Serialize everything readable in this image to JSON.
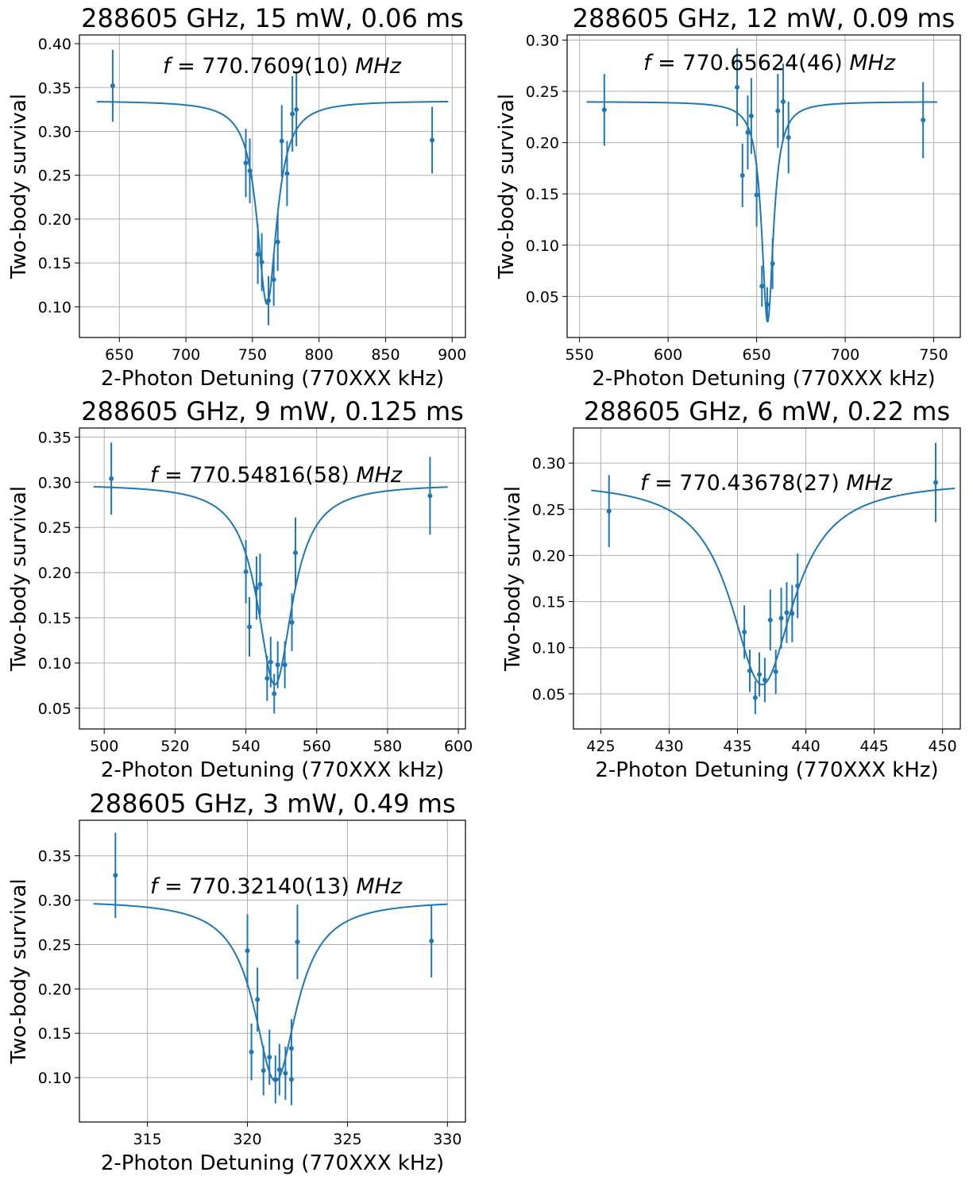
{
  "colors": {
    "series": "#1f77b4",
    "grid": "#b0b0b0"
  },
  "chart_data": [
    {
      "type": "scatter",
      "title": "288605 GHz, 15 mW, 0.06 ms",
      "xlabel": "2-Photon Detuning (770XXX kHz)",
      "ylabel": "Two-body survival",
      "annotation": "f = 770.7609(10) MHz",
      "annotation_parts": {
        "f": "f",
        "eq": " = 770.7609(10) ",
        "unit": "MHz"
      },
      "xlim": [
        620,
        910
      ],
      "ylim": [
        0.065,
        0.41
      ],
      "xticks": [
        650,
        700,
        750,
        800,
        850,
        900
      ],
      "yticks": [
        0.1,
        0.15,
        0.2,
        0.25,
        0.3,
        0.35,
        0.4
      ],
      "ytick_decimals": 2,
      "grid": true,
      "series": [
        {
          "x": [
            645,
            745,
            748,
            754,
            757,
            762,
            766,
            769,
            772,
            776,
            780,
            783,
            885
          ],
          "y": [
            0.352,
            0.264,
            0.255,
            0.16,
            0.151,
            0.107,
            0.131,
            0.174,
            0.289,
            0.252,
            0.32,
            0.325,
            0.29
          ],
          "yerr": [
            0.041,
            0.039,
            0.037,
            0.034,
            0.033,
            0.028,
            0.03,
            0.033,
            0.041,
            0.037,
            0.043,
            0.042,
            0.038
          ]
        }
      ],
      "fit": {
        "x_range": [
          633,
          897
        ],
        "baseline": 0.335,
        "depth": 0.232,
        "center": 760.9,
        "hwhm": 9.0
      }
    },
    {
      "type": "scatter",
      "title": "288605 GHz, 12 mW, 0.09 ms",
      "xlabel": "2-Photon Detuning (770XXX kHz)",
      "ylabel": "Two-body survival",
      "annotation": "f = 770.65624(46) MHz",
      "annotation_parts": {
        "f": "f",
        "eq": " = 770.65624(46) ",
        "unit": "MHz"
      },
      "xlim": [
        543,
        765
      ],
      "ylim": [
        0.01,
        0.305
      ],
      "xticks": [
        550,
        600,
        650,
        700,
        750
      ],
      "yticks": [
        0.05,
        0.1,
        0.15,
        0.2,
        0.25,
        0.3
      ],
      "ytick_decimals": 2,
      "grid": true,
      "series": [
        {
          "x": [
            564,
            639,
            642,
            645,
            647,
            650,
            653,
            656,
            659,
            662,
            665,
            668,
            744
          ],
          "y": [
            0.232,
            0.254,
            0.168,
            0.21,
            0.226,
            0.149,
            0.06,
            0.042,
            0.082,
            0.231,
            0.24,
            0.205,
            0.222
          ],
          "yerr": [
            0.035,
            0.038,
            0.031,
            0.036,
            0.037,
            0.031,
            0.02,
            0.017,
            0.025,
            0.036,
            0.037,
            0.035,
            0.037
          ]
        }
      ],
      "fit": {
        "x_range": [
          554,
          752
        ],
        "baseline": 0.24,
        "depth": 0.215,
        "center": 656.2,
        "hwhm": 4.0
      }
    },
    {
      "type": "scatter",
      "title": "288605 GHz, 9 mW, 0.125 ms",
      "xlabel": "2-Photon Detuning (770XXX kHz)",
      "ylabel": "Two-body survival",
      "annotation": "f = 770.54816(58) MHz",
      "annotation_parts": {
        "f": "f",
        "eq": " = 770.54816(58) ",
        "unit": "MHz"
      },
      "xlim": [
        493,
        602
      ],
      "ylim": [
        0.027,
        0.36
      ],
      "xticks": [
        500,
        520,
        540,
        560,
        580,
        600
      ],
      "yticks": [
        0.05,
        0.1,
        0.15,
        0.2,
        0.25,
        0.3,
        0.35
      ],
      "ytick_decimals": 2,
      "grid": true,
      "series": [
        {
          "x": [
            502,
            540,
            541,
            543,
            544,
            546,
            547,
            548,
            549,
            551,
            553,
            554,
            592
          ],
          "y": [
            0.304,
            0.201,
            0.14,
            0.183,
            0.187,
            0.083,
            0.101,
            0.066,
            0.098,
            0.098,
            0.145,
            0.222,
            0.285
          ],
          "yerr": [
            0.04,
            0.035,
            0.033,
            0.035,
            0.034,
            0.025,
            0.028,
            0.022,
            0.026,
            0.026,
            0.032,
            0.039,
            0.043
          ]
        }
      ],
      "fit": {
        "x_range": [
          497,
          597
        ],
        "baseline": 0.298,
        "depth": 0.222,
        "center": 548.2,
        "hwhm": 6.0
      }
    },
    {
      "type": "scatter",
      "title": "288605 GHz, 6 mW, 0.22 ms",
      "xlabel": "2-Photon Detuning (770XXX kHz)",
      "ylabel": "Two-body survival",
      "annotation": "f = 770.43678(27) MHz",
      "annotation_parts": {
        "f": "f",
        "eq": " = 770.43678(27) ",
        "unit": "MHz"
      },
      "xlim": [
        423,
        451.3
      ],
      "ylim": [
        0.012,
        0.338
      ],
      "xticks": [
        425,
        430,
        435,
        440,
        445,
        450
      ],
      "yticks": [
        0.05,
        0.1,
        0.15,
        0.2,
        0.25,
        0.3
      ],
      "ytick_decimals": 2,
      "grid": true,
      "series": [
        {
          "x": [
            425.6,
            435.5,
            435.9,
            436.3,
            436.6,
            437.0,
            437.4,
            437.8,
            438.2,
            438.6,
            439.0,
            439.4,
            449.5
          ],
          "y": [
            0.248,
            0.117,
            0.075,
            0.046,
            0.071,
            0.065,
            0.13,
            0.074,
            0.132,
            0.138,
            0.137,
            0.167,
            0.279
          ],
          "yerr": [
            0.039,
            0.029,
            0.023,
            0.018,
            0.024,
            0.024,
            0.033,
            0.024,
            0.033,
            0.033,
            0.031,
            0.035,
            0.043
          ]
        }
      ],
      "fit": {
        "x_range": [
          424.3,
          450.9
        ],
        "baseline": 0.281,
        "depth": 0.221,
        "center": 436.8,
        "hwhm": 2.8
      }
    },
    {
      "type": "scatter",
      "title": "288605 GHz, 3 mW, 0.49 ms",
      "xlabel": "2-Photon Detuning (770XXX kHz)",
      "ylabel": "Two-body survival",
      "annotation": "f = 770.32140(13) MHz",
      "annotation_parts": {
        "f": "f",
        "eq": " = 770.32140(13) ",
        "unit": "MHz"
      },
      "xlim": [
        311.6,
        330.9
      ],
      "ylim": [
        0.05,
        0.39
      ],
      "xticks": [
        315,
        320,
        325,
        330
      ],
      "yticks": [
        0.1,
        0.15,
        0.2,
        0.25,
        0.3,
        0.35
      ],
      "ytick_decimals": 2,
      "grid": true,
      "series": [
        {
          "x": [
            313.4,
            320.0,
            320.2,
            320.5,
            320.8,
            321.1,
            321.4,
            321.6,
            321.9,
            322.2,
            322.5,
            322.2,
            329.2
          ],
          "y": [
            0.328,
            0.243,
            0.129,
            0.188,
            0.108,
            0.123,
            0.098,
            0.109,
            0.105,
            0.133,
            0.253,
            0.098,
            0.254
          ],
          "yerr": [
            0.048,
            0.041,
            0.032,
            0.036,
            0.028,
            0.031,
            0.027,
            0.029,
            0.03,
            0.033,
            0.042,
            0.029,
            0.041
          ]
        }
      ],
      "fit": {
        "x_range": [
          312.3,
          330.0
        ],
        "baseline": 0.3,
        "depth": 0.204,
        "center": 321.4,
        "hwhm": 1.3
      }
    }
  ]
}
